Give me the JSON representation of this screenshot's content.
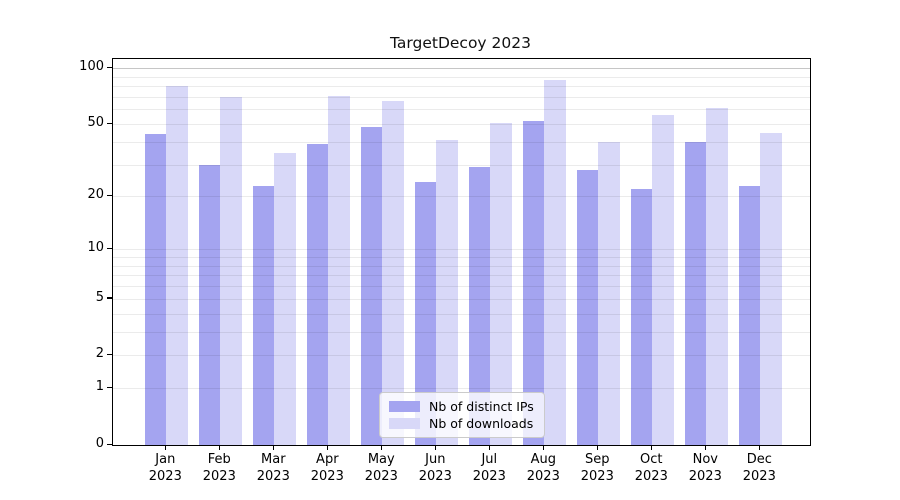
{
  "chart_data": {
    "type": "bar",
    "title": "TargetDecoy 2023",
    "categories": [
      "Jan",
      "Feb",
      "Mar",
      "Apr",
      "May",
      "Jun",
      "Jul",
      "Aug",
      "Sep",
      "Oct",
      "Nov",
      "Dec"
    ],
    "category_year_suffix": "2023",
    "series": [
      {
        "name": "Nb of distinct IPs",
        "color": "#a4a4f0",
        "values": [
          44,
          30,
          23,
          39,
          48,
          24,
          29,
          52,
          28,
          22,
          40,
          23
        ]
      },
      {
        "name": "Nb of downloads",
        "color": "#d8d8f8",
        "values": [
          80,
          70,
          35,
          71,
          67,
          41,
          51,
          87,
          40,
          56,
          61,
          45
        ]
      }
    ],
    "yscale": "log1p",
    "ylim": [
      0,
      108
    ],
    "yticks": [
      100,
      50,
      20,
      10,
      5,
      2,
      1,
      0
    ],
    "minor_gridlines": [
      3,
      4,
      6,
      7,
      8,
      9,
      30,
      40,
      60,
      70,
      80,
      90
    ],
    "grid": true,
    "legend": {
      "position": "lower center"
    },
    "colors": {
      "axis": "#000000",
      "gridline": "rgba(0,0,0,0.08)",
      "top_gridline": "#c6c6c6",
      "background": "#ffffff"
    }
  }
}
